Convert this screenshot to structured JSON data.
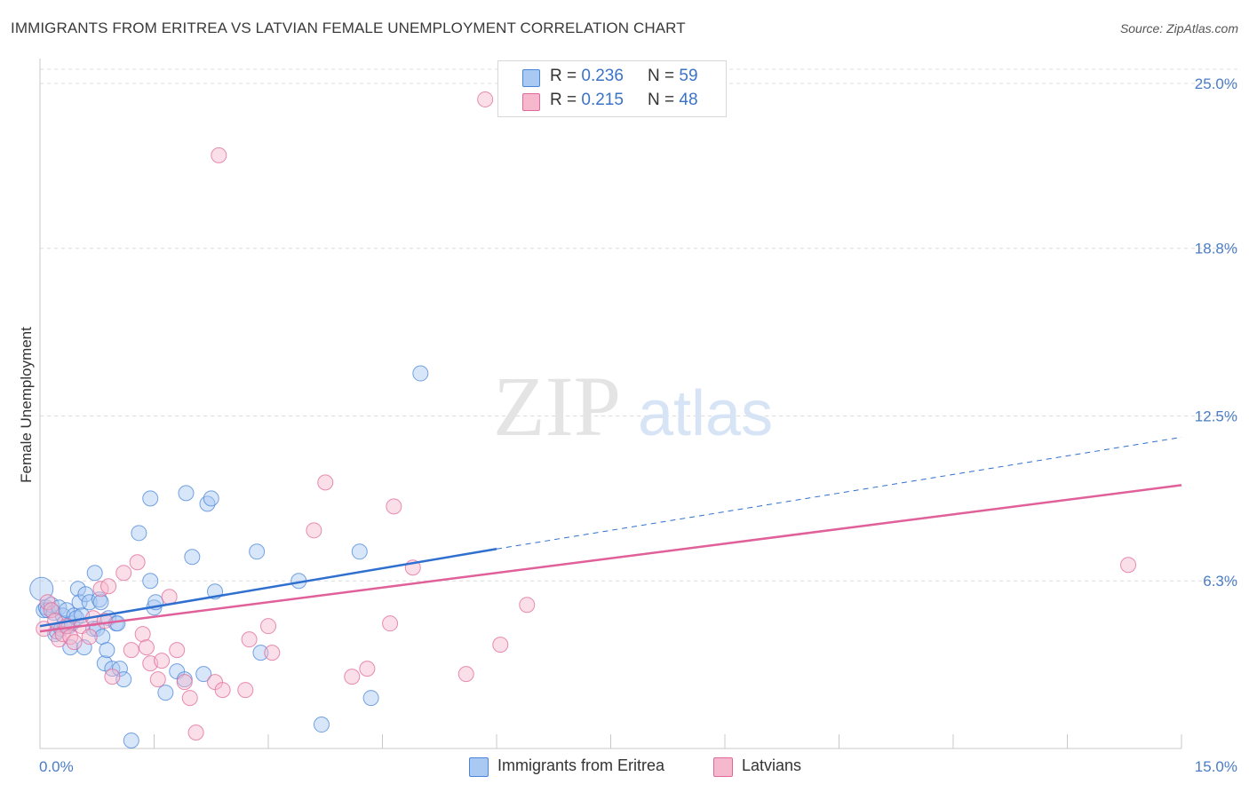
{
  "title": "IMMIGRANTS FROM ERITREA VS LATVIAN FEMALE UNEMPLOYMENT CORRELATION CHART",
  "source": "Source: ZipAtlas.com",
  "watermark": {
    "zip": "ZIP",
    "atlas": "atlas"
  },
  "legend": {
    "r_label": "R =",
    "n_label": "N =",
    "series": [
      {
        "r": "0.236",
        "n": "59"
      },
      {
        "r": "0.215",
        "n": "48"
      }
    ]
  },
  "chart_data": {
    "type": "scatter",
    "title": "IMMIGRANTS FROM ERITREA VS LATVIAN FEMALE UNEMPLOYMENT CORRELATION CHART",
    "xlabel": "",
    "ylabel": "Female Unemployment",
    "xlim": [
      0,
      15
    ],
    "ylim": [
      0,
      25.8
    ],
    "x_tick_labels": [
      "0.0%",
      "15.0%"
    ],
    "y_ticks": [
      6.3,
      12.5,
      18.8,
      25.0
    ],
    "y_tick_labels": [
      "6.3%",
      "12.5%",
      "18.8%",
      "25.0%"
    ],
    "grid": true,
    "legend_position": "top-center",
    "series": [
      {
        "name": "Immigrants from Eritrea",
        "color": "#4a86d8",
        "fill": "#a9c8f2",
        "r": 0.236,
        "n": 59,
        "trend": {
          "x0": 0,
          "y0": 4.6,
          "x1": 6.0,
          "y1": 7.5,
          "dash_to_x": 15.0,
          "dash_to_y": 11.7
        },
        "points": [
          [
            0.02,
            6.0
          ],
          [
            0.05,
            5.2
          ],
          [
            0.08,
            5.3
          ],
          [
            0.1,
            5.2
          ],
          [
            0.15,
            5.4
          ],
          [
            0.18,
            5.1
          ],
          [
            0.2,
            4.3
          ],
          [
            0.22,
            4.4
          ],
          [
            0.25,
            5.3
          ],
          [
            0.28,
            4.5
          ],
          [
            0.3,
            5.0
          ],
          [
            0.32,
            4.7
          ],
          [
            0.35,
            5.2
          ],
          [
            0.38,
            4.6
          ],
          [
            0.4,
            3.8
          ],
          [
            0.42,
            4.7
          ],
          [
            0.45,
            5.0
          ],
          [
            0.48,
            4.9
          ],
          [
            0.5,
            6.0
          ],
          [
            0.52,
            5.5
          ],
          [
            0.55,
            5.0
          ],
          [
            0.58,
            3.8
          ],
          [
            0.6,
            5.8
          ],
          [
            0.65,
            5.5
          ],
          [
            0.7,
            4.5
          ],
          [
            0.72,
            6.6
          ],
          [
            0.75,
            4.5
          ],
          [
            0.78,
            5.6
          ],
          [
            0.8,
            5.5
          ],
          [
            0.82,
            4.2
          ],
          [
            0.85,
            3.2
          ],
          [
            0.88,
            3.7
          ],
          [
            0.9,
            4.9
          ],
          [
            0.95,
            3.0
          ],
          [
            1.0,
            4.7
          ],
          [
            1.02,
            4.7
          ],
          [
            1.05,
            3.0
          ],
          [
            1.1,
            2.6
          ],
          [
            1.3,
            8.1
          ],
          [
            1.45,
            9.4
          ],
          [
            1.45,
            6.3
          ],
          [
            1.5,
            5.3
          ],
          [
            1.52,
            5.5
          ],
          [
            1.65,
            2.1
          ],
          [
            1.8,
            2.9
          ],
          [
            1.9,
            2.6
          ],
          [
            1.92,
            9.6
          ],
          [
            2.0,
            7.2
          ],
          [
            2.15,
            2.8
          ],
          [
            2.2,
            9.2
          ],
          [
            2.25,
            9.4
          ],
          [
            2.3,
            5.9
          ],
          [
            2.85,
            7.4
          ],
          [
            2.9,
            3.6
          ],
          [
            3.4,
            6.3
          ],
          [
            3.7,
            0.9
          ],
          [
            4.2,
            7.4
          ],
          [
            4.35,
            1.9
          ],
          [
            5.0,
            14.1
          ],
          [
            1.2,
            0.3
          ]
        ]
      },
      {
        "name": "Latvians",
        "color": "#e0689a",
        "fill": "#f6b8cc",
        "r": 0.215,
        "n": 48,
        "trend": {
          "x0": 0,
          "y0": 4.4,
          "x1": 15.0,
          "y1": 9.9
        },
        "points": [
          [
            0.05,
            4.5
          ],
          [
            0.1,
            5.5
          ],
          [
            0.15,
            5.2
          ],
          [
            0.2,
            4.8
          ],
          [
            0.25,
            4.1
          ],
          [
            0.3,
            4.3
          ],
          [
            0.35,
            4.6
          ],
          [
            0.4,
            4.2
          ],
          [
            0.45,
            4.0
          ],
          [
            0.55,
            4.6
          ],
          [
            0.65,
            4.2
          ],
          [
            0.7,
            4.9
          ],
          [
            0.8,
            6.0
          ],
          [
            0.85,
            4.8
          ],
          [
            0.9,
            6.1
          ],
          [
            0.95,
            2.7
          ],
          [
            1.1,
            6.6
          ],
          [
            1.2,
            3.7
          ],
          [
            1.28,
            7.0
          ],
          [
            1.35,
            4.3
          ],
          [
            1.4,
            3.8
          ],
          [
            1.45,
            3.2
          ],
          [
            1.55,
            2.6
          ],
          [
            1.6,
            3.3
          ],
          [
            1.7,
            5.7
          ],
          [
            1.8,
            3.7
          ],
          [
            1.9,
            2.5
          ],
          [
            1.97,
            1.9
          ],
          [
            2.05,
            0.6
          ],
          [
            2.3,
            2.5
          ],
          [
            2.35,
            22.3
          ],
          [
            2.4,
            2.2
          ],
          [
            2.7,
            2.2
          ],
          [
            2.75,
            4.1
          ],
          [
            3.0,
            4.6
          ],
          [
            3.05,
            3.6
          ],
          [
            3.6,
            8.2
          ],
          [
            3.75,
            10.0
          ],
          [
            4.1,
            2.7
          ],
          [
            4.3,
            3.0
          ],
          [
            4.6,
            4.7
          ],
          [
            4.65,
            9.1
          ],
          [
            4.9,
            6.8
          ],
          [
            5.6,
            2.8
          ],
          [
            5.85,
            24.4
          ],
          [
            6.05,
            3.9
          ],
          [
            6.4,
            5.4
          ],
          [
            14.3,
            6.9
          ]
        ]
      }
    ]
  }
}
